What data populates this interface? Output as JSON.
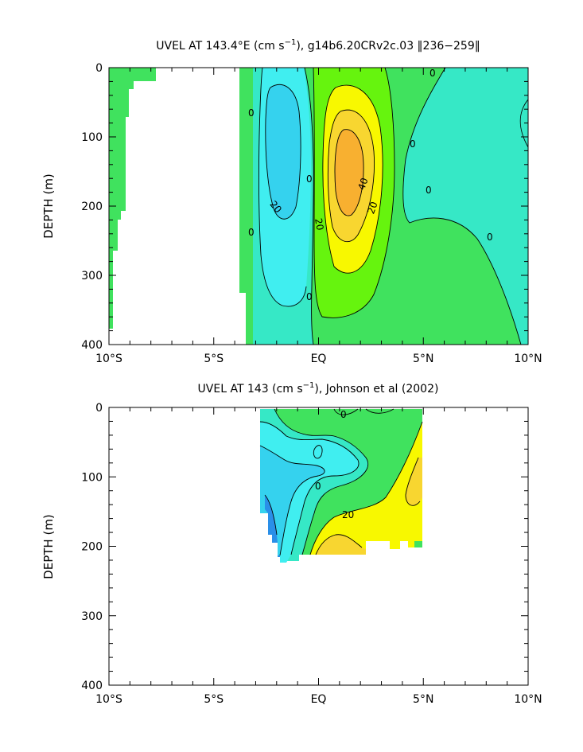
{
  "colors": {
    "band_neg30": "#2a8fe8",
    "band_neg20": "#35d2ee",
    "band_neg10": "#40eef0",
    "band_0": "#36e8c6",
    "band_10": "#40e25e",
    "band_20": "#66f40e",
    "band_30": "#f8f800",
    "band_40": "#f8d630",
    "band_50": "#f8b030",
    "contour": "#000000",
    "axis": "#000000"
  },
  "chart_data": [
    {
      "type": "heatmap",
      "title_main": "UVEL AT 143.4°E (cm s",
      "title_sup": "−1",
      "title_rest": "), g14b6.20CRv2c.03 ‖236−259‖",
      "xlabel": "",
      "ylabel": "DEPTH (m)",
      "xlim": [
        -10,
        10
      ],
      "ylim": [
        400,
        0
      ],
      "x_ticks": [
        -10,
        -5,
        0,
        5,
        10
      ],
      "x_tick_labels": [
        "10°S",
        "5°S",
        "EQ",
        "5°N",
        "10°N"
      ],
      "y_ticks": [
        0,
        100,
        200,
        300,
        400
      ],
      "y_tick_labels": [
        "0",
        "100",
        "200",
        "300",
        "400"
      ],
      "grid": false,
      "land_mask": "white region west of about 6.4°S, with green coastal band",
      "max_value_cm_s": 50,
      "contour_labels": [
        "0",
        "0",
        "0",
        "0",
        "0",
        "0",
        "0",
        "20",
        "20",
        "20",
        "40"
      ],
      "core": {
        "lon": 1.3,
        "depth_m": 180,
        "value": 50
      },
      "countercurrent": {
        "lon": -2.0,
        "depth_m": 150,
        "value": -10
      }
    },
    {
      "type": "heatmap",
      "title_main": "UVEL AT 143 (cm s",
      "title_sup": "−1",
      "title_rest": "), Johnson et al (2002)",
      "xlabel": "",
      "ylabel": "DEPTH (m)",
      "xlim": [
        -10,
        10
      ],
      "ylim": [
        400,
        0
      ],
      "x_ticks": [
        -10,
        -5,
        0,
        5,
        10
      ],
      "x_tick_labels": [
        "10°S",
        "5°S",
        "EQ",
        "5°N",
        "10°N"
      ],
      "y_ticks": [
        0,
        100,
        200,
        300,
        400
      ],
      "y_tick_labels": [
        "0",
        "100",
        "200",
        "300",
        "400"
      ],
      "grid": false,
      "data_extent": {
        "lon": [
          -2.7,
          5.0
        ],
        "depth_m": [
          0,
          225
        ]
      },
      "contour_labels": [
        "0",
        "0",
        "20"
      ],
      "core": {
        "lon": 1.0,
        "depth_m": 200,
        "value": 40
      }
    }
  ]
}
